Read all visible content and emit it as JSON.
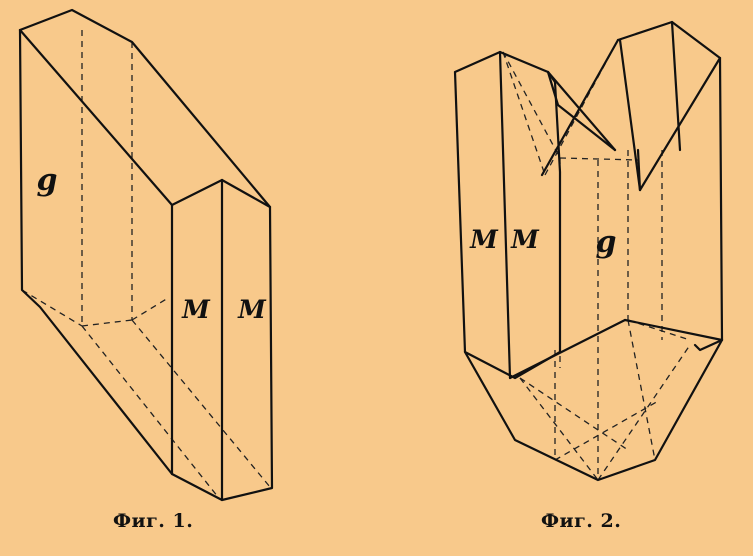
{
  "figures": [
    {
      "caption": "Фиг. 1.",
      "labels": {
        "face_g": "g",
        "face_m1": "M",
        "face_m2": "M"
      }
    },
    {
      "caption": "Фиг. 2.",
      "labels": {
        "face_m1": "M",
        "face_m2": "M",
        "face_g": "g"
      }
    }
  ]
}
